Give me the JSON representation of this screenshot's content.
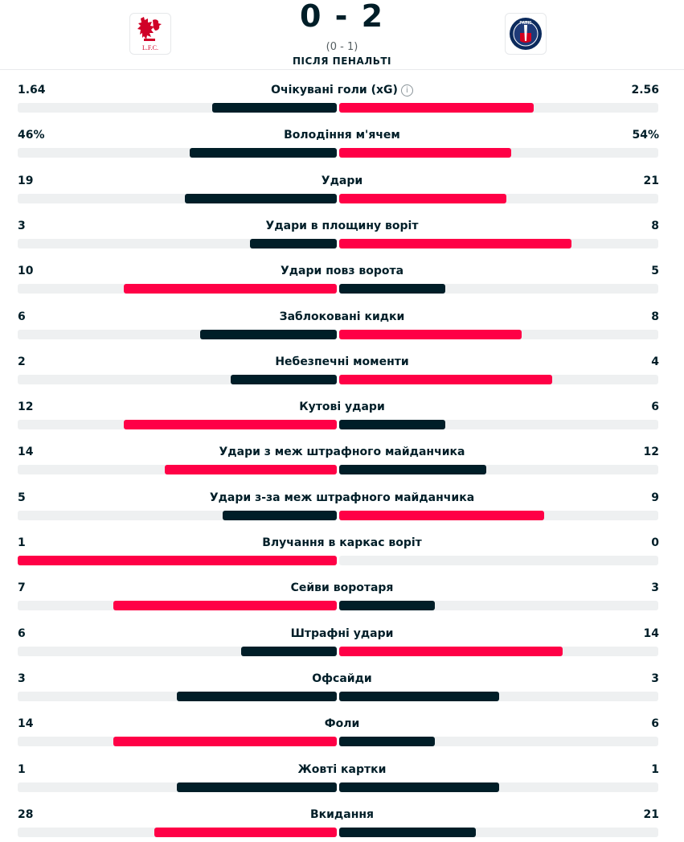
{
  "match": {
    "score": "0 - 2",
    "halftime": "(0 - 1)",
    "status": "ПІСЛЯ ПЕНАЛЬТІ",
    "home_logo_text": "L.F.C.",
    "away_logo_text": "PARIS"
  },
  "colors": {
    "winner": "#ff0046",
    "other": "#001e28",
    "track": "#eef0f1"
  },
  "icons": {
    "info": "info-circle-icon"
  },
  "stats": [
    {
      "label": "Очікувані голи (xG)",
      "home": "1.64",
      "away": "2.56",
      "home_share": 0.39,
      "away_share": 0.61,
      "has_info": true
    },
    {
      "label": "Володіння м'ячем",
      "home": "46%",
      "away": "54%",
      "home_share": 0.46,
      "away_share": 0.54
    },
    {
      "label": "Удари",
      "home": "19",
      "away": "21",
      "home_share": 0.475,
      "away_share": 0.525
    },
    {
      "label": "Удари в площину воріт",
      "home": "3",
      "away": "8",
      "home_share": 0.2727,
      "away_share": 0.7273
    },
    {
      "label": "Удари повз ворота",
      "home": "10",
      "away": "5",
      "home_share": 0.6667,
      "away_share": 0.3333
    },
    {
      "label": "Заблоковані кидки",
      "home": "6",
      "away": "8",
      "home_share": 0.4286,
      "away_share": 0.5714
    },
    {
      "label": "Небезпечні моменти",
      "home": "2",
      "away": "4",
      "home_share": 0.3333,
      "away_share": 0.6667
    },
    {
      "label": "Кутові удари",
      "home": "12",
      "away": "6",
      "home_share": 0.6667,
      "away_share": 0.3333
    },
    {
      "label": "Удари з меж штрафного майданчика",
      "home": "14",
      "away": "12",
      "home_share": 0.5385,
      "away_share": 0.4615
    },
    {
      "label": "Удари з-за меж штрафного майданчика",
      "home": "5",
      "away": "9",
      "home_share": 0.3571,
      "away_share": 0.6429
    },
    {
      "label": "Влучання в каркас воріт",
      "home": "1",
      "away": "0",
      "home_share": 1.0,
      "away_share": 0.0
    },
    {
      "label": "Сейви воротаря",
      "home": "7",
      "away": "3",
      "home_share": 0.7,
      "away_share": 0.3
    },
    {
      "label": "Штрафні удари",
      "home": "6",
      "away": "14",
      "home_share": 0.3,
      "away_share": 0.7
    },
    {
      "label": "Офсайди",
      "home": "3",
      "away": "3",
      "home_share": 0.5,
      "away_share": 0.5
    },
    {
      "label": "Фоли",
      "home": "14",
      "away": "6",
      "home_share": 0.7,
      "away_share": 0.3
    },
    {
      "label": "Жовті картки",
      "home": "1",
      "away": "1",
      "home_share": 0.5,
      "away_share": 0.5
    },
    {
      "label": "Вкидання",
      "home": "28",
      "away": "21",
      "home_share": 0.5714,
      "away_share": 0.4286
    }
  ]
}
